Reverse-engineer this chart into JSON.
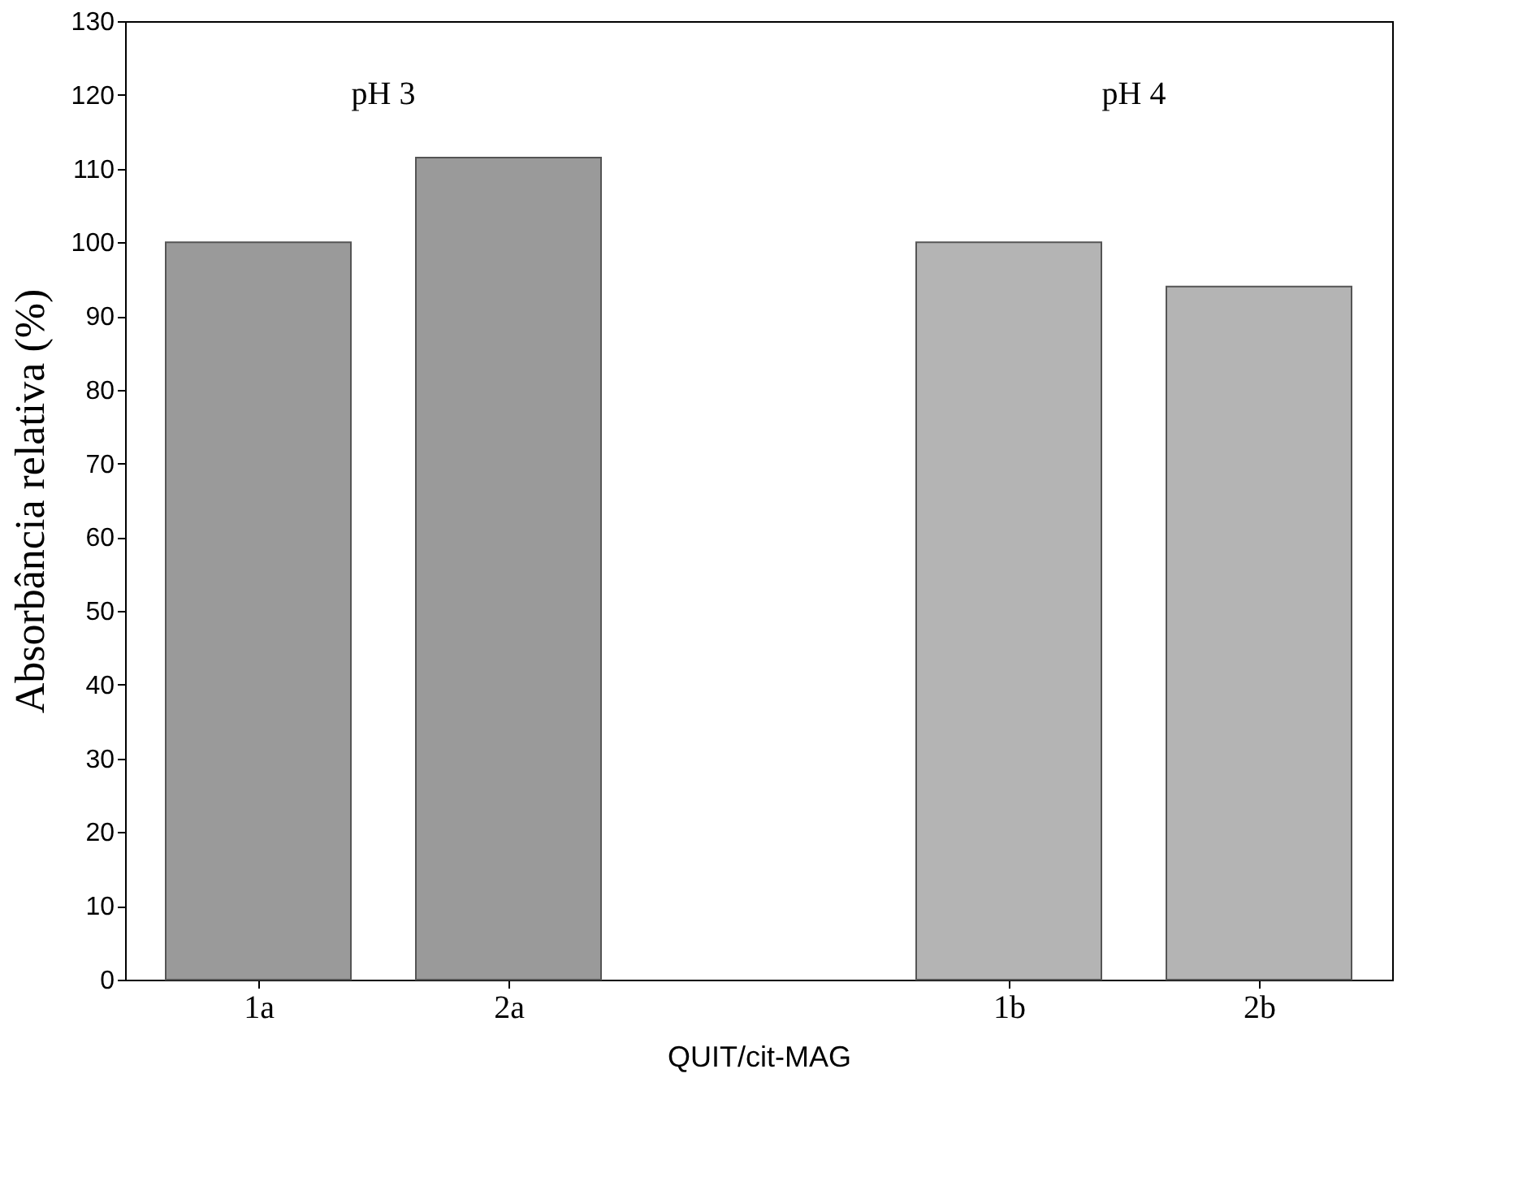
{
  "chart_data": {
    "type": "bar",
    "xlabel": "QUIT/cit-MAG",
    "ylabel": "Absorbância relativa (%)",
    "categories": [
      "1a",
      "2a",
      null,
      "1b",
      "2b"
    ],
    "values": [
      100,
      111.5,
      null,
      100,
      94
    ],
    "colors": [
      "#9a9a9a",
      "#9a9a9a",
      "#9a9a9a",
      "#b4b4b4",
      "#b4b4b4"
    ],
    "ylim": [
      0,
      130
    ],
    "yticks": [
      0,
      10,
      20,
      30,
      40,
      50,
      60,
      70,
      80,
      90,
      100,
      110,
      120,
      130
    ],
    "annotations": [
      "pH 3",
      "pH 4"
    ],
    "grid": false
  }
}
